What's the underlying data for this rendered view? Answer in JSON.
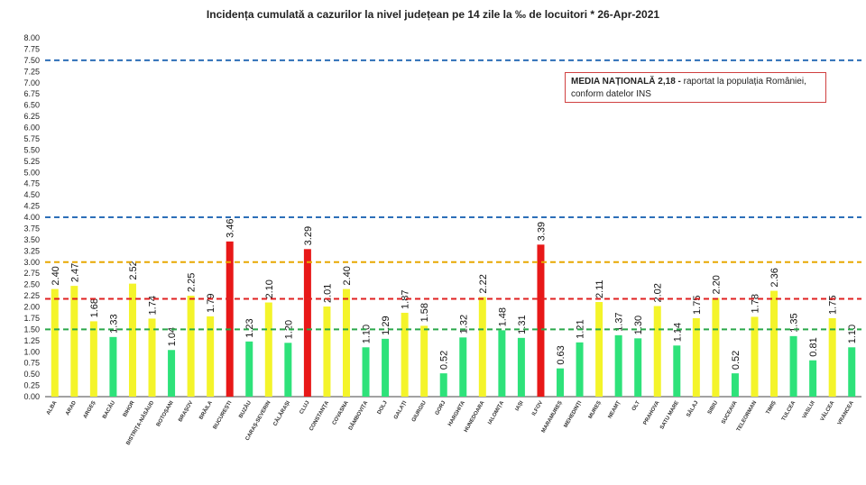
{
  "chart_data": {
    "type": "bar",
    "title": "Incidența cumulată a cazurilor la nivel județean pe 14 zile la ‰ de locuitori *   26-Apr-2021",
    "categories": [
      "ALBA",
      "ARAD",
      "ARGEȘ",
      "BACĂU",
      "BIHOR",
      "BISTRIȚA-NĂSĂUD",
      "BOTOȘANI",
      "BRAȘOV",
      "BRĂILA",
      "BUCUREȘTI",
      "BUZĂU",
      "CARAȘ-SEVERIN",
      "CĂLĂRAȘI",
      "CLUJ",
      "CONSTANȚA",
      "COVASNA",
      "DÂMBOVIȚA",
      "DOLJ",
      "GALAȚI",
      "GIURGIU",
      "GORJ",
      "HARGHITA",
      "HUNEDOARA",
      "IALOMIȚA",
      "IAȘI",
      "ILFOV",
      "MARAMUREȘ",
      "MEHEDINȚI",
      "MUREȘ",
      "NEAMȚ",
      "OLT",
      "PRAHOVA",
      "SATU MARE",
      "SĂLAJ",
      "SIBIU",
      "SUCEAVA",
      "TELEORMAN",
      "TIMIȘ",
      "TULCEA",
      "VASLUI",
      "VÂLCEA",
      "VRANCEA"
    ],
    "values": [
      2.4,
      2.47,
      1.68,
      1.33,
      2.52,
      1.74,
      1.04,
      2.25,
      1.79,
      3.46,
      1.23,
      2.1,
      1.2,
      3.29,
      2.01,
      2.4,
      1.1,
      1.29,
      1.87,
      1.58,
      0.52,
      1.32,
      2.22,
      1.48,
      1.31,
      3.39,
      0.63,
      1.21,
      2.11,
      1.37,
      1.3,
      2.02,
      1.14,
      1.75,
      2.2,
      0.52,
      1.78,
      2.36,
      1.35,
      0.81,
      1.75,
      1.1
    ],
    "value_labels": [
      "2.40",
      "2.47",
      "1.68",
      "1.33",
      "2.52",
      "1.74",
      "1.04",
      "2.25",
      "1.79",
      "3.46",
      "1.23",
      "2.10",
      "1.20",
      "3.29",
      "2.01",
      "2.40",
      "1.10",
      "1.29",
      "1.87",
      "1.58",
      "0.52",
      "1.32",
      "2.22",
      "1.48",
      "1.31",
      "3.39",
      "0.63",
      "1.21",
      "2.11",
      "1.37",
      "1.30",
      "2.02",
      "1.14",
      "1.75",
      "2.20",
      "0.52",
      "1.78",
      "2.36",
      "1.35",
      "0.81",
      "1.75",
      "1.10"
    ],
    "ylim": [
      0,
      8
    ],
    "yticks": [
      "0.00",
      "0.25",
      "0.50",
      "0.75",
      "1.00",
      "1.25",
      "1.50",
      "1.75",
      "2.00",
      "2.25",
      "2.50",
      "2.75",
      "3.00",
      "3.25",
      "3.50",
      "3.75",
      "4.00",
      "4.25",
      "4.50",
      "4.75",
      "5.00",
      "5.25",
      "5.50",
      "5.75",
      "6.00",
      "6.25",
      "6.50",
      "6.75",
      "7.00",
      "7.25",
      "7.50",
      "7.75",
      "8.00"
    ],
    "thresholds": [
      {
        "value": 1.5,
        "color": "#2aa84a"
      },
      {
        "value": 2.18,
        "color": "#e02020"
      },
      {
        "value": 3.0,
        "color": "#e8a800"
      },
      {
        "value": 4.0,
        "color": "#2d6fb8"
      },
      {
        "value": 7.5,
        "color": "#2d6fb8"
      }
    ],
    "colors": {
      "green": "#2ee27a",
      "yellow": "#f4f42a",
      "red": "#e81818"
    },
    "grid": false,
    "legend": "none"
  },
  "annotation": {
    "bold": "MEDIA NAȚIONALĂ  2,18 -",
    "text": " raportat la populația României,",
    "line2": "conform datelor INS"
  }
}
